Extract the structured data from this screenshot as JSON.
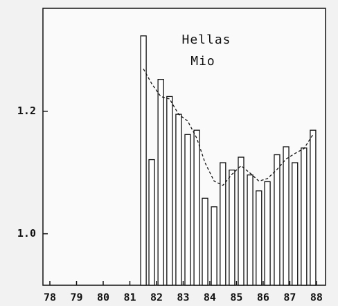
{
  "chart_data": {
    "type": "bar",
    "title": [
      "Hellas",
      "Mio"
    ],
    "x": [
      81.51,
      81.82,
      82.16,
      82.49,
      82.83,
      83.17,
      83.51,
      83.82,
      84.16,
      84.49,
      84.83,
      85.17,
      85.51,
      85.84,
      86.16,
      86.52,
      86.86,
      87.19,
      87.53,
      87.87
    ],
    "series": [
      {
        "type": "bar",
        "color": "#111111",
        "values": [
          1.323,
          1.121,
          1.252,
          1.224,
          1.195,
          1.162,
          1.169,
          1.058,
          1.044,
          1.116,
          1.104,
          1.125,
          1.096,
          1.07,
          1.085,
          1.129,
          1.142,
          1.116,
          1.14,
          1.169
        ]
      },
      {
        "type": "line",
        "color": "#111111",
        "dashed": true,
        "values": [
          1.269,
          1.245,
          1.224,
          1.22,
          1.195,
          1.184,
          1.156,
          1.116,
          1.086,
          1.079,
          1.097,
          1.111,
          1.099,
          1.086,
          1.09,
          1.105,
          1.122,
          1.131,
          1.139,
          1.162
        ]
      }
    ],
    "xlim": [
      77.74,
      88.34
    ],
    "xticks": [
      78,
      79,
      80,
      81,
      82,
      83,
      84,
      85,
      86,
      87,
      88
    ],
    "ylim": [
      0.916,
      1.368
    ],
    "yticks": [
      {
        "value": 1.0,
        "label": "1.0"
      },
      1.2
    ]
  }
}
